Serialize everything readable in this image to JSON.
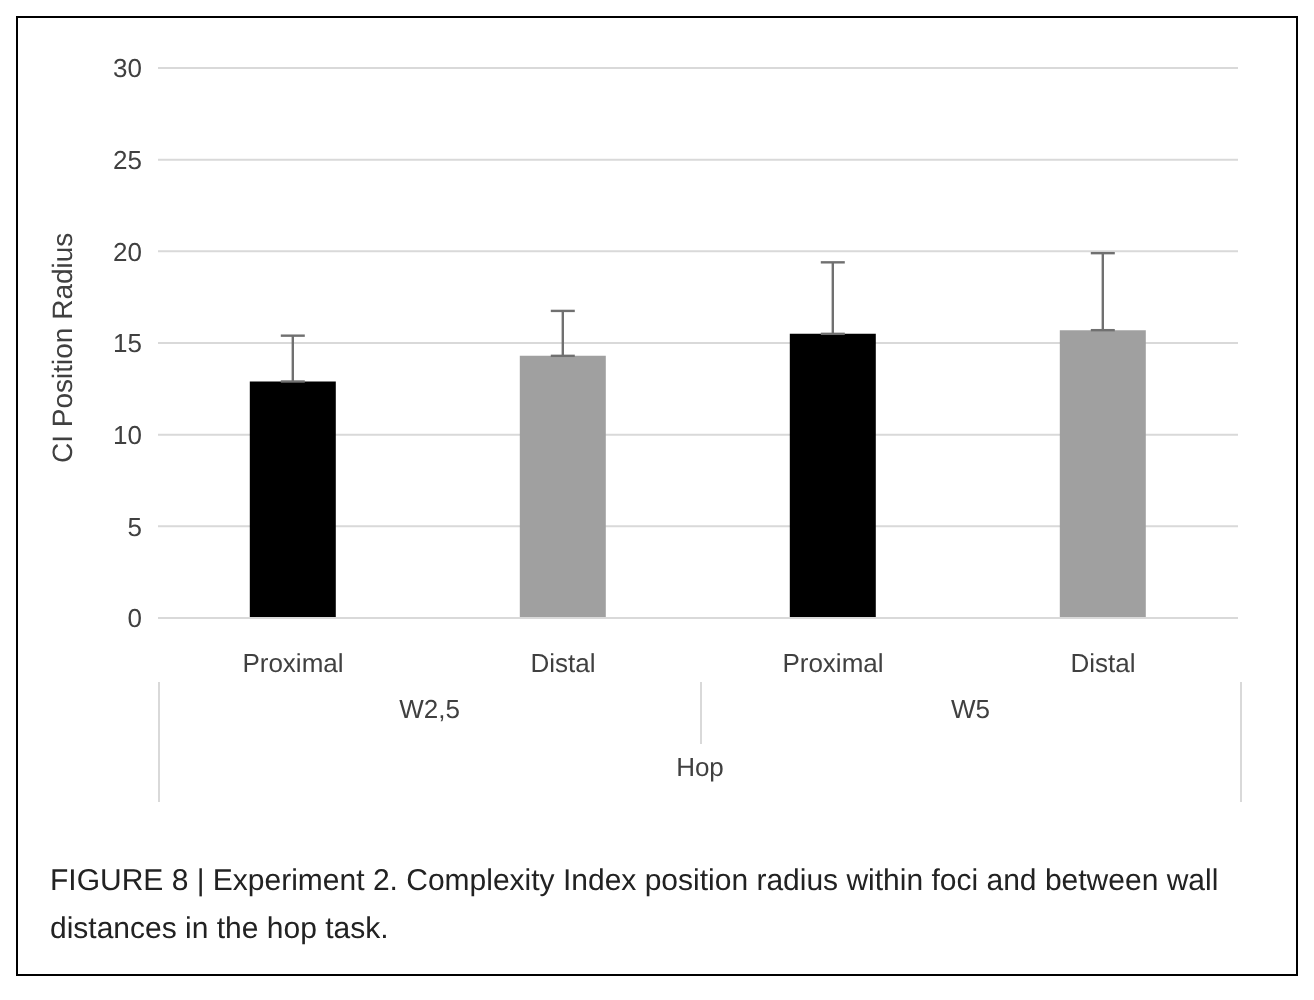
{
  "chart_data": {
    "type": "bar",
    "ylabel": "CI Position Radius",
    "xlabel": "Hop",
    "categories": [
      "Proximal",
      "Distal",
      "Proximal",
      "Distal"
    ],
    "values": [
      12.9,
      14.3,
      15.5,
      15.7
    ],
    "errors": [
      [
        12.9,
        15.4
      ],
      [
        14.3,
        16.75
      ],
      [
        15.5,
        19.4
      ],
      [
        15.7,
        19.9
      ]
    ],
    "colors": [
      "#000000",
      "#a0a0a0",
      "#000000",
      "#a0a0a0"
    ],
    "ylim": [
      0,
      30
    ],
    "yticks": [
      0,
      5,
      10,
      15,
      20,
      25,
      30
    ],
    "grid": "y",
    "annotations": [
      "W2,5",
      "W5",
      "FIGURE 8 | Experiment 2. Complexity Index position radius within foci and between wall distances in the hop task."
    ]
  }
}
